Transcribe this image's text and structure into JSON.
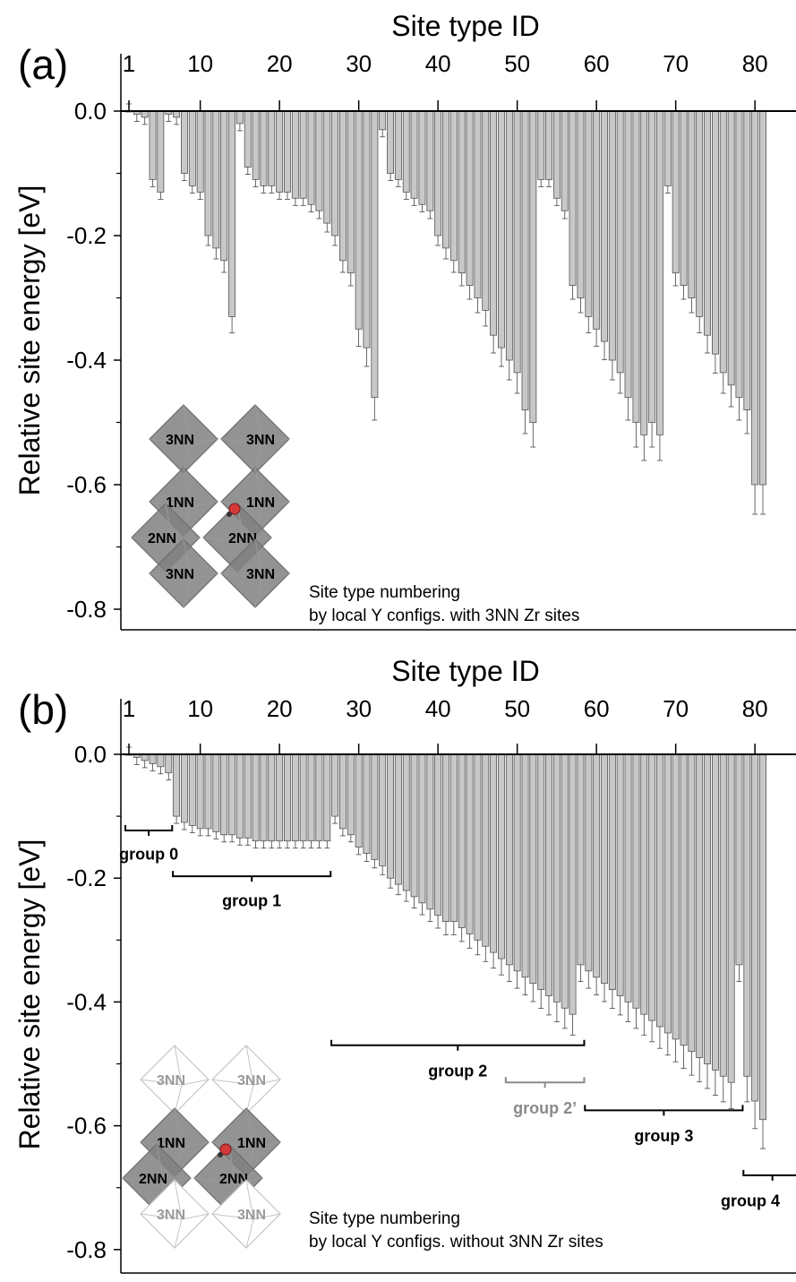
{
  "chart_data": [
    {
      "type": "bar",
      "panel_label": "(a)",
      "xlabel": "Site type ID",
      "ylabel": "Relative site energy [eV]",
      "x_ticks": [
        "1",
        "10",
        "20",
        "30",
        "40",
        "50",
        "60",
        "70",
        "80"
      ],
      "y_ticks": [
        "0.0",
        "-0.2",
        "-0.4",
        "-0.6",
        "-0.8"
      ],
      "ylim": [
        -0.8,
        0.05
      ],
      "xlim": [
        0.5,
        84.5
      ],
      "values": [
        0.0,
        -0.005,
        -0.01,
        -0.11,
        -0.13,
        -0.005,
        -0.01,
        -0.1,
        -0.12,
        -0.13,
        -0.2,
        -0.22,
        -0.24,
        -0.33,
        -0.02,
        -0.09,
        -0.11,
        -0.12,
        -0.12,
        -0.13,
        -0.13,
        -0.14,
        -0.14,
        -0.15,
        -0.16,
        -0.18,
        -0.2,
        -0.24,
        -0.26,
        -0.35,
        -0.38,
        -0.46,
        -0.03,
        -0.1,
        -0.11,
        -0.13,
        -0.14,
        -0.15,
        -0.16,
        -0.2,
        -0.22,
        -0.24,
        -0.26,
        -0.28,
        -0.3,
        -0.32,
        -0.36,
        -0.38,
        -0.4,
        -0.42,
        -0.48,
        -0.5,
        -0.11,
        -0.11,
        -0.14,
        -0.16,
        -0.28,
        -0.3,
        -0.33,
        -0.35,
        -0.37,
        -0.4,
        -0.42,
        -0.46,
        -0.5,
        -0.52,
        -0.5,
        -0.52,
        -0.12,
        -0.26,
        -0.28,
        -0.3,
        -0.33,
        -0.36,
        -0.39,
        -0.42,
        -0.44,
        -0.46,
        -0.48,
        -0.6,
        -0.6
      ],
      "annotation": [
        "Site type numbering",
        "by local Y configs. with 3NN Zr sites"
      ],
      "inset_labels": [
        "3NN",
        "3NN",
        "1NN",
        "1NN",
        "2NN",
        "2NN",
        "3NN",
        "3NN"
      ]
    },
    {
      "type": "bar",
      "panel_label": "(b)",
      "xlabel": "Site type ID",
      "ylabel": "Relative site energy [eV]",
      "x_ticks": [
        "1",
        "10",
        "20",
        "30",
        "40",
        "50",
        "60",
        "70",
        "80"
      ],
      "y_ticks": [
        "0.0",
        "-0.2",
        "-0.4",
        "-0.6",
        "-0.8"
      ],
      "ylim": [
        -0.8,
        0.05
      ],
      "xlim": [
        0.5,
        84.5
      ],
      "values": [
        0.0,
        -0.005,
        -0.01,
        -0.015,
        -0.02,
        -0.03,
        -0.1,
        -0.11,
        -0.115,
        -0.12,
        -0.12,
        -0.125,
        -0.13,
        -0.13,
        -0.135,
        -0.135,
        -0.14,
        -0.14,
        -0.14,
        -0.14,
        -0.14,
        -0.14,
        -0.14,
        -0.14,
        -0.14,
        -0.14,
        -0.1,
        -0.12,
        -0.13,
        -0.15,
        -0.16,
        -0.17,
        -0.18,
        -0.2,
        -0.21,
        -0.22,
        -0.23,
        -0.24,
        -0.25,
        -0.26,
        -0.27,
        -0.27,
        -0.28,
        -0.29,
        -0.3,
        -0.31,
        -0.32,
        -0.33,
        -0.34,
        -0.35,
        -0.36,
        -0.37,
        -0.38,
        -0.39,
        -0.4,
        -0.41,
        -0.42,
        -0.34,
        -0.35,
        -0.36,
        -0.37,
        -0.38,
        -0.39,
        -0.4,
        -0.41,
        -0.42,
        -0.43,
        -0.44,
        -0.45,
        -0.46,
        -0.47,
        -0.48,
        -0.49,
        -0.5,
        -0.51,
        -0.52,
        -0.53,
        -0.34,
        -0.52,
        -0.56,
        -0.59
      ],
      "groups": [
        {
          "label": "group 0",
          "from": 1,
          "to": 6,
          "y": -0.123,
          "label_y": -0.17,
          "color": "#000000"
        },
        {
          "label": "group 1",
          "from": 7,
          "to": 26,
          "y": -0.197,
          "label_y": -0.245,
          "color": "#000000"
        },
        {
          "label": "group 2",
          "from": 27,
          "to": 58,
          "y": -0.47,
          "label_y": -0.52,
          "color": "#000000"
        },
        {
          "label": "group 2’",
          "from": 49,
          "to": 58,
          "y": -0.53,
          "label_y": -0.58,
          "color": "#8a8a8a"
        },
        {
          "label": "group 3",
          "from": 59,
          "to": 78,
          "y": -0.575,
          "label_y": -0.625,
          "color": "#000000"
        },
        {
          "label": "group 4",
          "from": 79,
          "to": 86,
          "y": -0.68,
          "label_y": -0.73,
          "color": "#000000"
        }
      ],
      "annotation": [
        "Site type numbering",
        "by local Y configs. without 3NN Zr sites"
      ],
      "inset_labels": [
        "3NN",
        "3NN",
        "1NN",
        "1NN",
        "2NN",
        "2NN",
        "3NN",
        "3NN"
      ]
    }
  ],
  "colors": {
    "bar_fill": "#c8c8c8",
    "bar_stroke": "#555555",
    "axis": "#000000",
    "dark_octahedron": "#808080",
    "light_octahedron": "#c4c4c4",
    "atom": "#d43a3a"
  }
}
